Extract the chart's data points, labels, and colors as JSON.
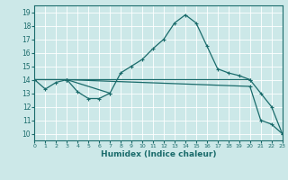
{
  "xlabel": "Humidex (Indice chaleur)",
  "xlim": [
    0,
    23
  ],
  "ylim": [
    9.5,
    19.5
  ],
  "xticks": [
    0,
    1,
    2,
    3,
    4,
    5,
    6,
    7,
    8,
    9,
    10,
    11,
    12,
    13,
    14,
    15,
    16,
    17,
    18,
    19,
    20,
    21,
    22,
    23
  ],
  "yticks": [
    10,
    11,
    12,
    13,
    14,
    15,
    16,
    17,
    18,
    19
  ],
  "bg_color": "#cce8e8",
  "grid_color": "#aacccc",
  "line_color": "#1a6b6b",
  "series": [
    {
      "x": [
        0,
        1,
        2,
        3,
        4,
        5,
        6,
        7
      ],
      "y": [
        14.0,
        13.3,
        13.8,
        14.0,
        13.1,
        12.6,
        12.6,
        13.0
      ]
    },
    {
      "x": [
        0,
        3,
        7,
        8,
        9,
        10,
        11,
        12,
        13,
        14,
        15,
        16,
        17,
        18,
        19,
        20
      ],
      "y": [
        14.0,
        14.0,
        13.0,
        14.5,
        15.0,
        15.5,
        16.3,
        17.0,
        18.2,
        18.8,
        18.2,
        16.5,
        14.8,
        14.5,
        14.3,
        14.0
      ]
    },
    {
      "x": [
        0,
        3,
        20,
        21,
        22,
        23
      ],
      "y": [
        14.0,
        14.0,
        14.0,
        13.0,
        12.0,
        10.0
      ]
    },
    {
      "x": [
        3,
        20,
        21,
        22,
        23
      ],
      "y": [
        14.0,
        13.5,
        11.0,
        10.7,
        10.0
      ]
    }
  ]
}
